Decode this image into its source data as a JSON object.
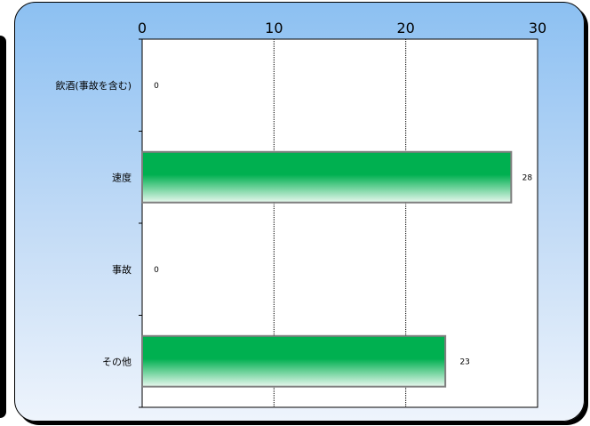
{
  "chart_data": {
    "type": "bar",
    "orientation": "horizontal",
    "categories": [
      "飲酒(事故を含む)",
      "速度",
      "事故",
      "その他"
    ],
    "values": [
      0,
      28,
      0,
      23
    ],
    "data_labels": [
      "0",
      "28",
      "0",
      "23"
    ],
    "xlim": [
      0,
      30
    ],
    "x_ticks": [
      "0",
      "10",
      "20",
      "30"
    ],
    "x_axis_position": "top",
    "grid": true,
    "legend": "none",
    "colors": {
      "bar_top": "#00b050",
      "bar_bottom": "#e8f8ee",
      "bar_border": "#7f7f7f",
      "plot_bg": "#ffffff",
      "panel_top": "#8cc0f2",
      "panel_bottom": "#eef4fc"
    }
  }
}
